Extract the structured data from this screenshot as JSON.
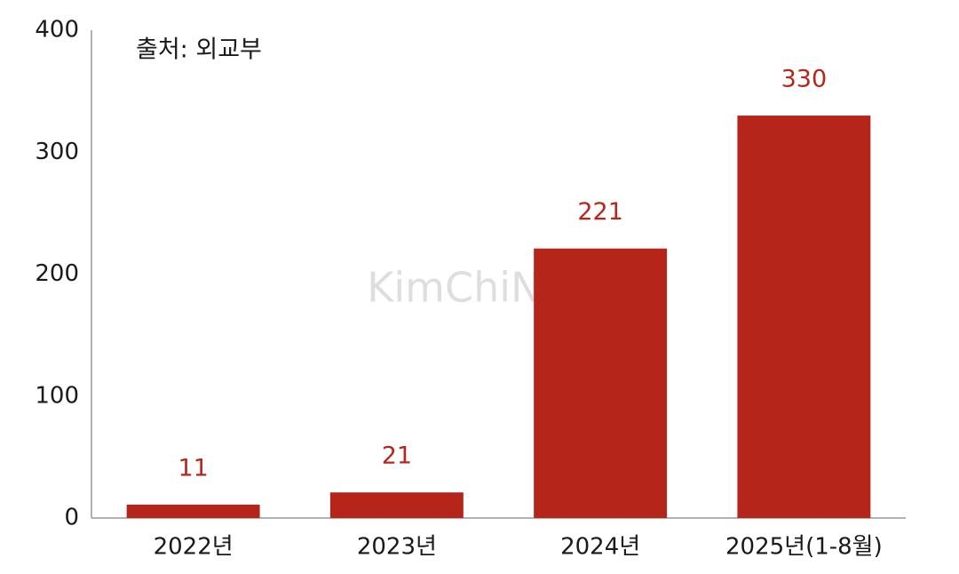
{
  "chart_data": {
    "type": "bar",
    "annotations": [
      "출처: 외교부",
      "KimChiNha"
    ],
    "categories": [
      "2022년",
      "2023년",
      "2024년",
      "2025년(1-8월)"
    ],
    "values": [
      11,
      21,
      221,
      330
    ],
    "color": "#b52519",
    "ylim": [
      0,
      400
    ],
    "yticks": [
      0,
      100,
      200,
      300,
      400
    ],
    "grid": false
  }
}
